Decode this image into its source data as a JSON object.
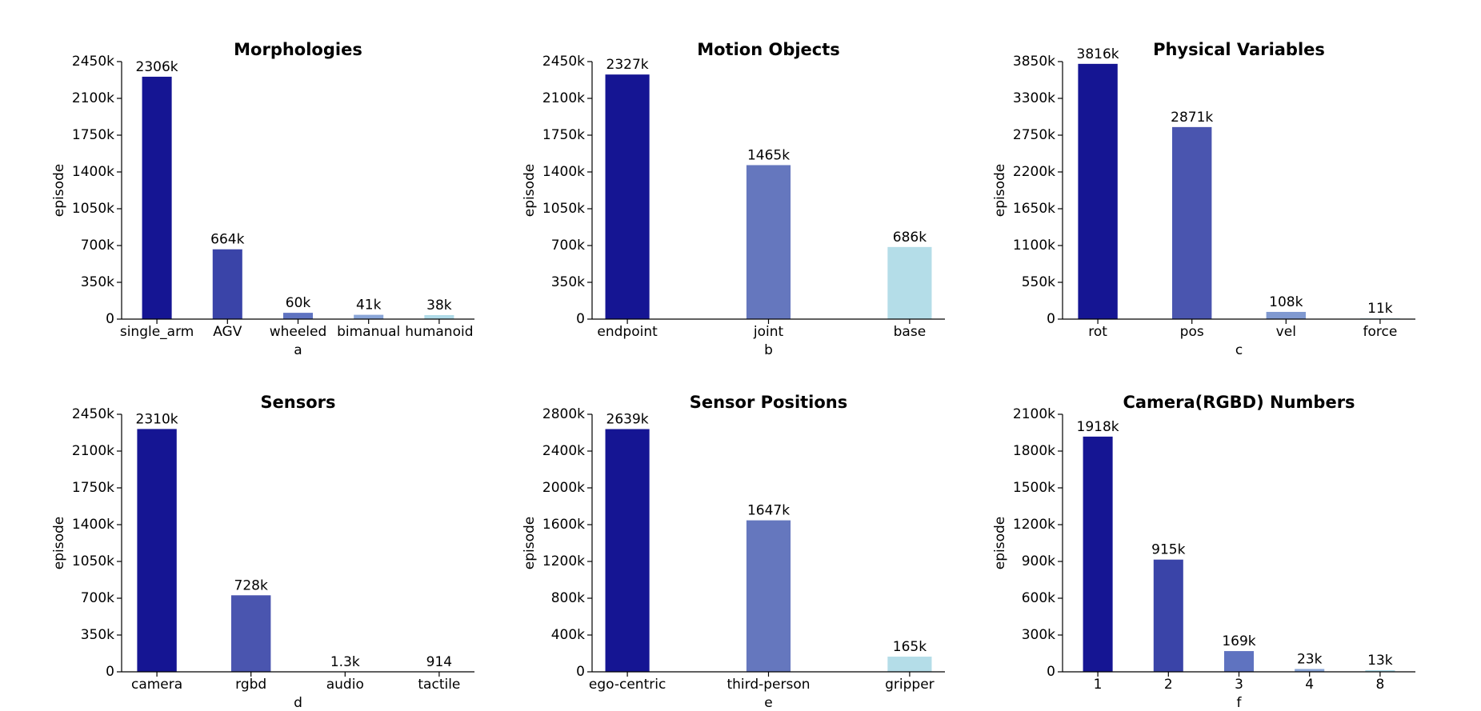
{
  "chart_data": [
    {
      "type": "bar",
      "title": "Morphologies",
      "xlabel": "a",
      "ylabel": "episode",
      "categories": [
        "single_arm",
        "AGV",
        "wheeled",
        "bimanual",
        "humanoid"
      ],
      "values": [
        2306000,
        664000,
        60000,
        41000,
        38000
      ],
      "value_labels": [
        "2306k",
        "664k",
        "60k",
        "41k",
        "38k"
      ],
      "colors": [
        "#151593",
        "#3a44a8",
        "#5f73c0",
        "#8aa6d8",
        "#b0dbe8"
      ],
      "ylim": [
        0,
        2450000
      ],
      "yticks": [
        0,
        {
          "value": 350000,
          "label": "350k"
        },
        {
          "value": 700000,
          "label": "700k"
        },
        {
          "value": 1050000,
          "label": "1050k"
        },
        {
          "value": 1400000,
          "label": "1400k"
        },
        {
          "value": 1750000,
          "label": "1750k"
        },
        {
          "value": 2100000,
          "label": "2100k"
        },
        {
          "value": 2450000,
          "label": "2450k"
        }
      ]
    },
    {
      "type": "bar",
      "title": "Motion Objects",
      "xlabel": "b",
      "ylabel": "episode",
      "categories": [
        "endpoint",
        "joint",
        "base"
      ],
      "values": [
        2327000,
        1465000,
        686000
      ],
      "value_labels": [
        "2327k",
        "1465k",
        "686k"
      ],
      "colors": [
        "#151593",
        "#6577be",
        "#b4dde8"
      ],
      "ylim": [
        0,
        2450000
      ],
      "yticks": [
        0,
        {
          "value": 350000,
          "label": "350k"
        },
        {
          "value": 700000,
          "label": "700k"
        },
        {
          "value": 1050000,
          "label": "1050k"
        },
        {
          "value": 1400000,
          "label": "1400k"
        },
        {
          "value": 1750000,
          "label": "1750k"
        },
        {
          "value": 2100000,
          "label": "2100k"
        },
        {
          "value": 2450000,
          "label": "2450k"
        }
      ]
    },
    {
      "type": "bar",
      "title": "Physical Variables",
      "xlabel": "c",
      "ylabel": "episode",
      "categories": [
        "rot",
        "pos",
        "vel",
        "force"
      ],
      "values": [
        3816000,
        2871000,
        108000,
        11000
      ],
      "value_labels": [
        "3816k",
        "2871k",
        "108k",
        "11k"
      ],
      "colors": [
        "#151593",
        "#4a55af",
        "#8099d0",
        "#b4dde8"
      ],
      "ylim": [
        0,
        3850000
      ],
      "yticks": [
        0,
        {
          "value": 550000,
          "label": "550k"
        },
        {
          "value": 1100000,
          "label": "1100k"
        },
        {
          "value": 1650000,
          "label": "1650k"
        },
        {
          "value": 2200000,
          "label": "2200k"
        },
        {
          "value": 2750000,
          "label": "2750k"
        },
        {
          "value": 3300000,
          "label": "3300k"
        },
        {
          "value": 3850000,
          "label": "3850k"
        }
      ]
    },
    {
      "type": "bar",
      "title": "Sensors",
      "xlabel": "d",
      "ylabel": "episode",
      "categories": [
        "camera",
        "rgbd",
        "audio",
        "tactile"
      ],
      "values": [
        2310000,
        728000,
        1300,
        914
      ],
      "value_labels": [
        "2310k",
        "728k",
        "1.3k",
        "914"
      ],
      "colors": [
        "#151593",
        "#4a55af",
        "#8099d0",
        "#b4dde8"
      ],
      "ylim": [
        0,
        2450000
      ],
      "yticks": [
        0,
        {
          "value": 350000,
          "label": "350k"
        },
        {
          "value": 700000,
          "label": "700k"
        },
        {
          "value": 1050000,
          "label": "1050k"
        },
        {
          "value": 1400000,
          "label": "1400k"
        },
        {
          "value": 1750000,
          "label": "1750k"
        },
        {
          "value": 2100000,
          "label": "2100k"
        },
        {
          "value": 2450000,
          "label": "2450k"
        }
      ]
    },
    {
      "type": "bar",
      "title": "Sensor Positions",
      "xlabel": "e",
      "ylabel": "episode",
      "categories": [
        "ego-centric",
        "third-person",
        "gripper"
      ],
      "values": [
        2639000,
        1647000,
        165000
      ],
      "value_labels": [
        "2639k",
        "1647k",
        "165k"
      ],
      "colors": [
        "#151593",
        "#6577be",
        "#b4dde8"
      ],
      "ylim": [
        0,
        2800000
      ],
      "yticks": [
        0,
        {
          "value": 400000,
          "label": "400k"
        },
        {
          "value": 800000,
          "label": "800k"
        },
        {
          "value": 1200000,
          "label": "1200k"
        },
        {
          "value": 1600000,
          "label": "1600k"
        },
        {
          "value": 2000000,
          "label": "2000k"
        },
        {
          "value": 2400000,
          "label": "2400k"
        },
        {
          "value": 2800000,
          "label": "2800k"
        }
      ]
    },
    {
      "type": "bar",
      "title": "Camera(RGBD) Numbers",
      "xlabel": "f",
      "ylabel": "episode",
      "categories": [
        "1",
        "2",
        "3",
        "4",
        "8"
      ],
      "values": [
        1918000,
        915000,
        169000,
        23000,
        13000
      ],
      "value_labels": [
        "1918k",
        "915k",
        "169k",
        "23k",
        "13k"
      ],
      "colors": [
        "#151593",
        "#3a44a8",
        "#5f73c0",
        "#8aa6d8",
        "#b0dbe8"
      ],
      "ylim": [
        0,
        2100000
      ],
      "yticks": [
        0,
        {
          "value": 300000,
          "label": "300k"
        },
        {
          "value": 600000,
          "label": "600k"
        },
        {
          "value": 900000,
          "label": "900k"
        },
        {
          "value": 1200000,
          "label": "1200k"
        },
        {
          "value": 1500000,
          "label": "1500k"
        },
        {
          "value": 1800000,
          "label": "1800k"
        },
        {
          "value": 2100000,
          "label": "2100k"
        }
      ]
    }
  ]
}
